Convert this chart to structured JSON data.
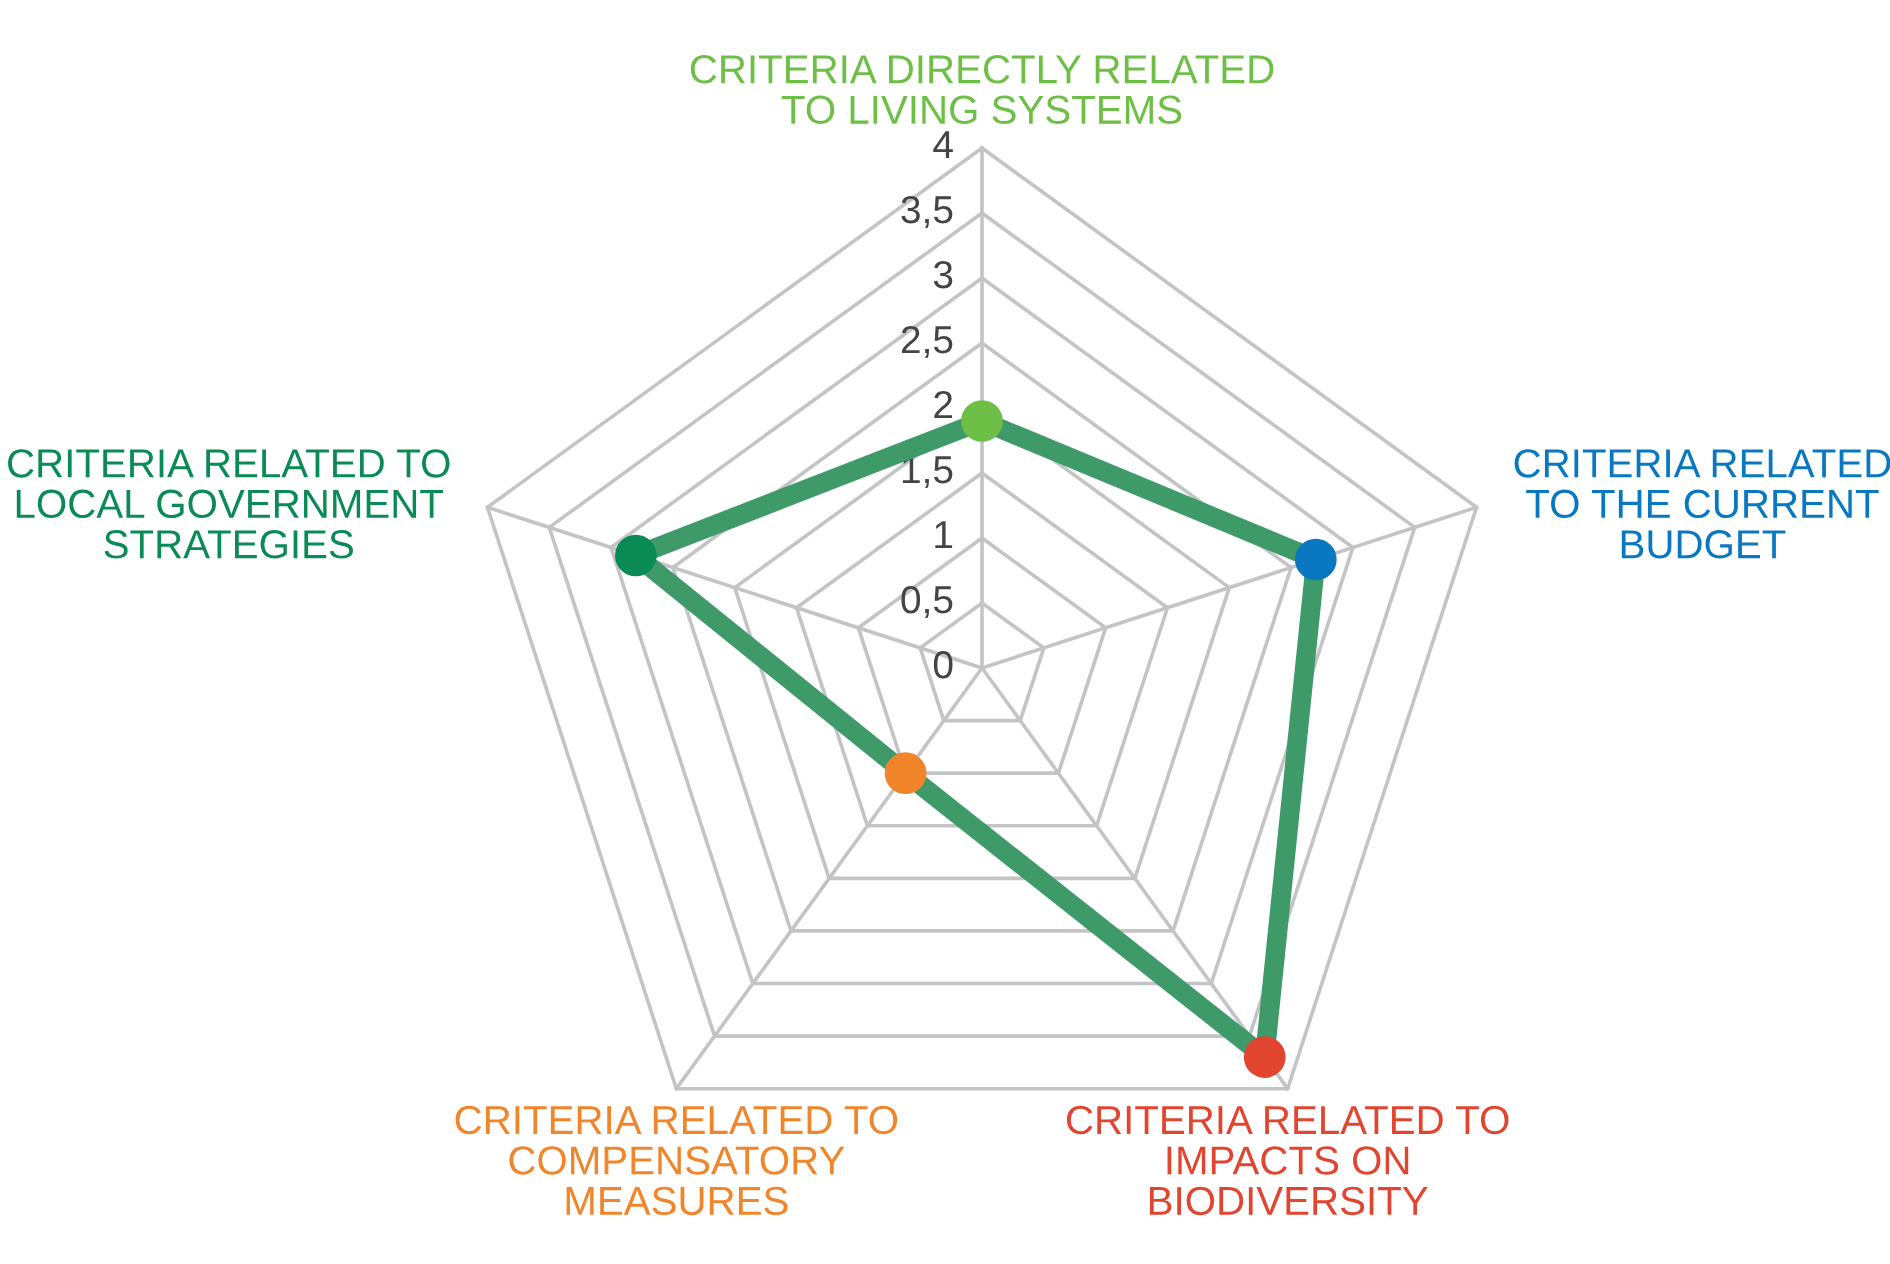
{
  "chart_data": {
    "type": "radar",
    "categories": [
      "CRITERIA DIRECTLY RELATED\nTO LIVING SYSTEMS",
      "CRITERIA RELATED\nTO THE CURRENT\nBUDGET",
      "CRITERIA RELATED TO\nIMPACTS ON\nBIODIVERSITY",
      "CRITERIA RELATED TO\nCOMPENSATORY\nMEASURES",
      "CRITERIA RELATED TO\nLOCAL GOVERNMENT\nSTRATEGIES"
    ],
    "colors": [
      "#6dbf45",
      "#0a78c0",
      "#e2452f",
      "#f0852a",
      "#0a8a55"
    ],
    "series": [
      {
        "color": "#3f9a6a",
        "values": [
          1.9,
          2.7,
          3.7,
          1.0,
          2.8
        ]
      }
    ],
    "ylim": [
      0,
      4
    ],
    "yticks": [
      0,
      {
        "value": 0.5,
        "label": "0,5"
      },
      1,
      {
        "value": 1.5,
        "label": "1,5"
      },
      2,
      {
        "value": 2.5,
        "label": "2,5"
      },
      3,
      {
        "value": 3.5,
        "label": "3,5"
      },
      4
    ],
    "marker": "circle",
    "line_style": "solid",
    "grid": true
  }
}
